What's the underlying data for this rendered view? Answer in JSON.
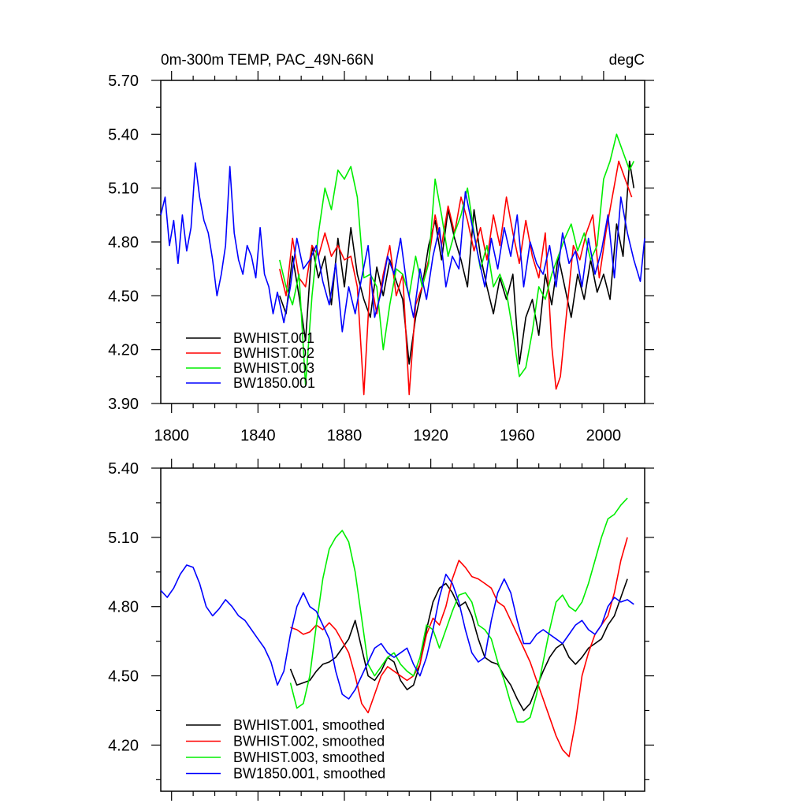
{
  "chart_data": [
    {
      "type": "line",
      "title": "0m-300m TEMP, PAC_49N-66N",
      "units": "degC",
      "xlim": [
        1795,
        2019
      ],
      "ylim": [
        3.9,
        5.7
      ],
      "xticks": [
        1800,
        1840,
        1880,
        1920,
        1960,
        2000
      ],
      "xtick_labels": [
        "1800",
        "1840",
        "1880",
        "1920",
        "1960",
        "2000"
      ],
      "yticks": [
        3.9,
        4.2,
        4.5,
        4.8,
        5.1,
        5.4,
        5.7
      ],
      "ytick_labels": [
        "3.90",
        "4.20",
        "4.50",
        "4.80",
        "5.10",
        "5.40",
        "5.70"
      ],
      "legend_position": "bottom-left",
      "series": [
        {
          "name": "BWHIST.001",
          "color": "#000000",
          "x": [
            1850,
            1853,
            1856,
            1859,
            1862,
            1865,
            1868,
            1871,
            1874,
            1877,
            1880,
            1883,
            1886,
            1889,
            1892,
            1895,
            1898,
            1901,
            1904,
            1907,
            1910,
            1913,
            1916,
            1919,
            1922,
            1925,
            1928,
            1931,
            1934,
            1937,
            1940,
            1943,
            1946,
            1949,
            1952,
            1955,
            1958,
            1961,
            1964,
            1967,
            1970,
            1973,
            1976,
            1979,
            1982,
            1985,
            1988,
            1991,
            1994,
            1997,
            2000,
            2003,
            2006,
            2009,
            2012,
            2014
          ],
          "y": [
            4.5,
            4.4,
            4.72,
            4.5,
            4.25,
            4.78,
            4.6,
            4.72,
            4.45,
            4.82,
            4.55,
            4.88,
            4.62,
            4.48,
            4.38,
            4.66,
            4.5,
            4.7,
            4.58,
            4.48,
            4.12,
            4.38,
            4.55,
            4.78,
            4.92,
            4.7,
            4.98,
            4.82,
            4.7,
            4.55,
            4.98,
            4.72,
            4.55,
            4.4,
            4.6,
            4.48,
            4.62,
            4.12,
            4.38,
            4.48,
            4.28,
            4.62,
            4.45,
            4.72,
            4.55,
            4.38,
            4.62,
            4.48,
            4.7,
            4.52,
            4.62,
            4.48,
            4.9,
            4.72,
            5.25,
            5.1
          ]
        },
        {
          "name": "BWHIST.002",
          "color": "#ff0000",
          "x": [
            1850,
            1853,
            1856,
            1859,
            1862,
            1865,
            1868,
            1871,
            1874,
            1877,
            1880,
            1883,
            1886,
            1889,
            1892,
            1895,
            1898,
            1901,
            1904,
            1907,
            1910,
            1913,
            1916,
            1919,
            1922,
            1925,
            1928,
            1931,
            1934,
            1937,
            1940,
            1943,
            1946,
            1949,
            1952,
            1955,
            1958,
            1961,
            1964,
            1967,
            1970,
            1973,
            1976,
            1978,
            1980,
            1983,
            1986,
            1989,
            1992,
            1995,
            1998,
            2001,
            2004,
            2007,
            2010,
            2013
          ],
          "y": [
            4.65,
            4.5,
            4.82,
            4.6,
            4.55,
            4.78,
            4.72,
            4.85,
            4.72,
            4.78,
            4.7,
            4.72,
            4.55,
            3.95,
            4.6,
            4.4,
            4.62,
            4.78,
            4.5,
            4.62,
            3.95,
            4.45,
            4.55,
            4.7,
            4.95,
            4.78,
            5.0,
            4.85,
            5.05,
            4.92,
            4.75,
            4.88,
            4.7,
            4.95,
            4.78,
            5.05,
            4.85,
            4.68,
            4.92,
            4.72,
            4.6,
            4.85,
            4.22,
            3.98,
            4.05,
            4.42,
            4.78,
            4.7,
            4.85,
            4.95,
            4.6,
            4.85,
            5.05,
            5.25,
            5.15,
            5.05
          ]
        },
        {
          "name": "BWHIST.003",
          "color": "#00ee00",
          "x": [
            1850,
            1853,
            1856,
            1859,
            1862,
            1865,
            1868,
            1871,
            1874,
            1877,
            1880,
            1883,
            1886,
            1889,
            1892,
            1895,
            1898,
            1901,
            1904,
            1907,
            1910,
            1913,
            1916,
            1919,
            1922,
            1925,
            1928,
            1931,
            1934,
            1937,
            1940,
            1943,
            1946,
            1949,
            1952,
            1955,
            1958,
            1961,
            1964,
            1967,
            1970,
            1973,
            1976,
            1979,
            1982,
            1985,
            1988,
            1991,
            1994,
            1997,
            2000,
            2003,
            2006,
            2009,
            2012,
            2014
          ],
          "y": [
            4.7,
            4.55,
            4.45,
            4.62,
            4.0,
            4.5,
            4.85,
            5.1,
            4.98,
            5.2,
            5.15,
            5.22,
            5.05,
            4.6,
            4.62,
            4.55,
            4.2,
            4.45,
            4.65,
            4.62,
            4.5,
            4.72,
            4.55,
            4.68,
            5.15,
            4.95,
            4.72,
            4.85,
            4.95,
            5.1,
            4.85,
            4.65,
            4.78,
            4.55,
            4.62,
            4.52,
            4.3,
            4.05,
            4.1,
            4.3,
            4.55,
            4.48,
            4.62,
            4.72,
            4.82,
            4.9,
            4.75,
            4.85,
            4.7,
            4.78,
            5.15,
            5.25,
            5.4,
            5.3,
            5.2,
            5.25
          ]
        },
        {
          "name": "BW1850.001",
          "color": "#0000ff",
          "x": [
            1795,
            1797,
            1799,
            1801,
            1803,
            1805,
            1807,
            1809,
            1811,
            1813,
            1815,
            1817,
            1819,
            1821,
            1823,
            1825,
            1827,
            1829,
            1831,
            1833,
            1835,
            1837,
            1839,
            1841,
            1843,
            1845,
            1847,
            1849,
            1852,
            1855,
            1858,
            1861,
            1864,
            1867,
            1870,
            1873,
            1876,
            1879,
            1882,
            1885,
            1888,
            1891,
            1894,
            1897,
            1900,
            1903,
            1906,
            1909,
            1912,
            1915,
            1918,
            1921,
            1924,
            1927,
            1930,
            1933,
            1936,
            1939,
            1942,
            1945,
            1948,
            1951,
            1954,
            1957,
            1960,
            1963,
            1966,
            1969,
            1972,
            1975,
            1978,
            1981,
            1984,
            1987,
            1990,
            1993,
            1996,
            1999,
            2002,
            2005,
            2008,
            2011,
            2014,
            2017,
            2019
          ],
          "y": [
            4.95,
            5.05,
            4.78,
            4.92,
            4.68,
            4.95,
            4.75,
            4.88,
            5.24,
            5.05,
            4.92,
            4.85,
            4.7,
            4.5,
            4.62,
            4.78,
            5.22,
            4.85,
            4.7,
            4.62,
            4.78,
            4.72,
            4.6,
            4.88,
            4.62,
            4.55,
            4.4,
            4.52,
            4.35,
            4.55,
            4.82,
            4.65,
            4.7,
            4.78,
            4.58,
            4.45,
            4.68,
            4.3,
            4.55,
            4.4,
            4.6,
            4.78,
            4.38,
            4.52,
            4.72,
            4.62,
            4.82,
            4.55,
            4.38,
            4.65,
            4.48,
            4.72,
            4.88,
            4.55,
            4.72,
            4.65,
            5.08,
            4.9,
            4.72,
            4.55,
            4.82,
            4.65,
            4.88,
            4.72,
            4.95,
            4.55,
            4.8,
            4.68,
            4.62,
            4.78,
            4.55,
            4.85,
            4.68,
            4.75,
            4.55,
            4.82,
            4.62,
            4.75,
            4.95,
            4.6,
            5.05,
            4.85,
            4.7,
            4.58,
            4.82
          ]
        }
      ]
    },
    {
      "type": "line",
      "title": "",
      "xlim": [
        1795,
        2019
      ],
      "ylim": [
        4.0,
        5.4
      ],
      "yticks": [
        4.2,
        4.5,
        4.8,
        5.1,
        5.4
      ],
      "ytick_labels": [
        "4.20",
        "4.50",
        "4.80",
        "5.10",
        "5.40"
      ],
      "legend_position": "bottom-left",
      "series": [
        {
          "name": "BWHIST.001, smoothed",
          "color": "#000000",
          "x": [
            1855,
            1858,
            1861,
            1864,
            1867,
            1870,
            1873,
            1876,
            1879,
            1882,
            1885,
            1888,
            1891,
            1894,
            1897,
            1900,
            1903,
            1906,
            1909,
            1912,
            1915,
            1918,
            1921,
            1924,
            1927,
            1930,
            1933,
            1936,
            1939,
            1942,
            1945,
            1948,
            1951,
            1954,
            1957,
            1960,
            1963,
            1966,
            1969,
            1972,
            1975,
            1978,
            1981,
            1984,
            1987,
            1990,
            1993,
            1996,
            1999,
            2002,
            2005,
            2008,
            2011
          ],
          "y": [
            4.53,
            4.46,
            4.47,
            4.48,
            4.52,
            4.55,
            4.56,
            4.58,
            4.62,
            4.66,
            4.74,
            4.62,
            4.5,
            4.48,
            4.52,
            4.58,
            4.56,
            4.48,
            4.44,
            4.46,
            4.55,
            4.7,
            4.82,
            4.88,
            4.9,
            4.86,
            4.8,
            4.82,
            4.76,
            4.66,
            4.58,
            4.56,
            4.55,
            4.5,
            4.46,
            4.4,
            4.35,
            4.38,
            4.45,
            4.52,
            4.58,
            4.62,
            4.64,
            4.58,
            4.55,
            4.58,
            4.62,
            4.64,
            4.66,
            4.72,
            4.76,
            4.84,
            4.92
          ]
        },
        {
          "name": "BWHIST.002, smoothed",
          "color": "#ff0000",
          "x": [
            1855,
            1858,
            1861,
            1864,
            1867,
            1870,
            1873,
            1876,
            1879,
            1882,
            1885,
            1888,
            1891,
            1894,
            1897,
            1900,
            1903,
            1906,
            1909,
            1912,
            1915,
            1918,
            1921,
            1924,
            1927,
            1930,
            1933,
            1936,
            1939,
            1942,
            1945,
            1948,
            1951,
            1954,
            1957,
            1960,
            1963,
            1966,
            1969,
            1972,
            1975,
            1978,
            1981,
            1984,
            1987,
            1990,
            1993,
            1996,
            1999,
            2002,
            2005,
            2008,
            2011
          ],
          "y": [
            4.71,
            4.7,
            4.68,
            4.69,
            4.72,
            4.7,
            4.73,
            4.7,
            4.65,
            4.6,
            4.5,
            4.38,
            4.34,
            4.42,
            4.5,
            4.54,
            4.52,
            4.5,
            4.48,
            4.5,
            4.55,
            4.68,
            4.75,
            4.72,
            4.8,
            4.92,
            5.0,
            4.97,
            4.93,
            4.92,
            4.9,
            4.88,
            4.82,
            4.8,
            4.74,
            4.68,
            4.62,
            4.56,
            4.48,
            4.4,
            4.32,
            4.24,
            4.18,
            4.15,
            4.3,
            4.5,
            4.6,
            4.68,
            4.72,
            4.76,
            4.86,
            5.0,
            5.1
          ]
        },
        {
          "name": "BWHIST.003, smoothed",
          "color": "#00ee00",
          "x": [
            1855,
            1858,
            1861,
            1864,
            1867,
            1870,
            1873,
            1876,
            1879,
            1882,
            1885,
            1888,
            1891,
            1894,
            1897,
            1900,
            1903,
            1906,
            1909,
            1912,
            1915,
            1918,
            1921,
            1924,
            1927,
            1930,
            1933,
            1936,
            1939,
            1942,
            1945,
            1948,
            1951,
            1954,
            1957,
            1960,
            1963,
            1966,
            1969,
            1972,
            1975,
            1978,
            1981,
            1984,
            1987,
            1990,
            1993,
            1996,
            1999,
            2002,
            2005,
            2008,
            2011
          ],
          "y": [
            4.47,
            4.36,
            4.38,
            4.5,
            4.72,
            4.92,
            5.05,
            5.1,
            5.13,
            5.08,
            4.95,
            4.75,
            4.55,
            4.5,
            4.54,
            4.58,
            4.6,
            4.55,
            4.52,
            4.5,
            4.58,
            4.72,
            4.7,
            4.62,
            4.7,
            4.78,
            4.85,
            4.86,
            4.82,
            4.72,
            4.7,
            4.66,
            4.56,
            4.48,
            4.38,
            4.3,
            4.3,
            4.32,
            4.42,
            4.56,
            4.7,
            4.82,
            4.85,
            4.8,
            4.78,
            4.82,
            4.9,
            5.0,
            5.1,
            5.18,
            5.2,
            5.24,
            5.27
          ]
        },
        {
          "name": "BW1850.001, smoothed",
          "color": "#0000ff",
          "x": [
            1795,
            1798,
            1801,
            1804,
            1807,
            1810,
            1813,
            1816,
            1819,
            1822,
            1825,
            1828,
            1831,
            1834,
            1837,
            1840,
            1843,
            1846,
            1849,
            1852,
            1855,
            1858,
            1861,
            1864,
            1867,
            1870,
            1873,
            1876,
            1879,
            1882,
            1885,
            1888,
            1891,
            1894,
            1897,
            1900,
            1903,
            1906,
            1909,
            1912,
            1915,
            1918,
            1921,
            1924,
            1927,
            1930,
            1933,
            1936,
            1939,
            1942,
            1945,
            1948,
            1951,
            1954,
            1957,
            1960,
            1963,
            1966,
            1969,
            1972,
            1975,
            1978,
            1981,
            1984,
            1987,
            1990,
            1993,
            1996,
            1999,
            2002,
            2005,
            2008,
            2011,
            2014
          ],
          "y": [
            4.87,
            4.84,
            4.88,
            4.94,
            4.98,
            4.97,
            4.9,
            4.8,
            4.76,
            4.79,
            4.83,
            4.8,
            4.76,
            4.74,
            4.7,
            4.66,
            4.62,
            4.56,
            4.46,
            4.52,
            4.68,
            4.8,
            4.86,
            4.8,
            4.78,
            4.72,
            4.66,
            4.52,
            4.42,
            4.4,
            4.44,
            4.5,
            4.56,
            4.62,
            4.64,
            4.6,
            4.58,
            4.6,
            4.62,
            4.55,
            4.5,
            4.58,
            4.7,
            4.84,
            4.94,
            4.9,
            4.82,
            4.7,
            4.6,
            4.56,
            4.58,
            4.74,
            4.86,
            4.92,
            4.86,
            4.74,
            4.64,
            4.64,
            4.68,
            4.7,
            4.68,
            4.66,
            4.64,
            4.68,
            4.72,
            4.74,
            4.7,
            4.68,
            4.72,
            4.8,
            4.84,
            4.82,
            4.83,
            4.81
          ]
        }
      ]
    }
  ]
}
